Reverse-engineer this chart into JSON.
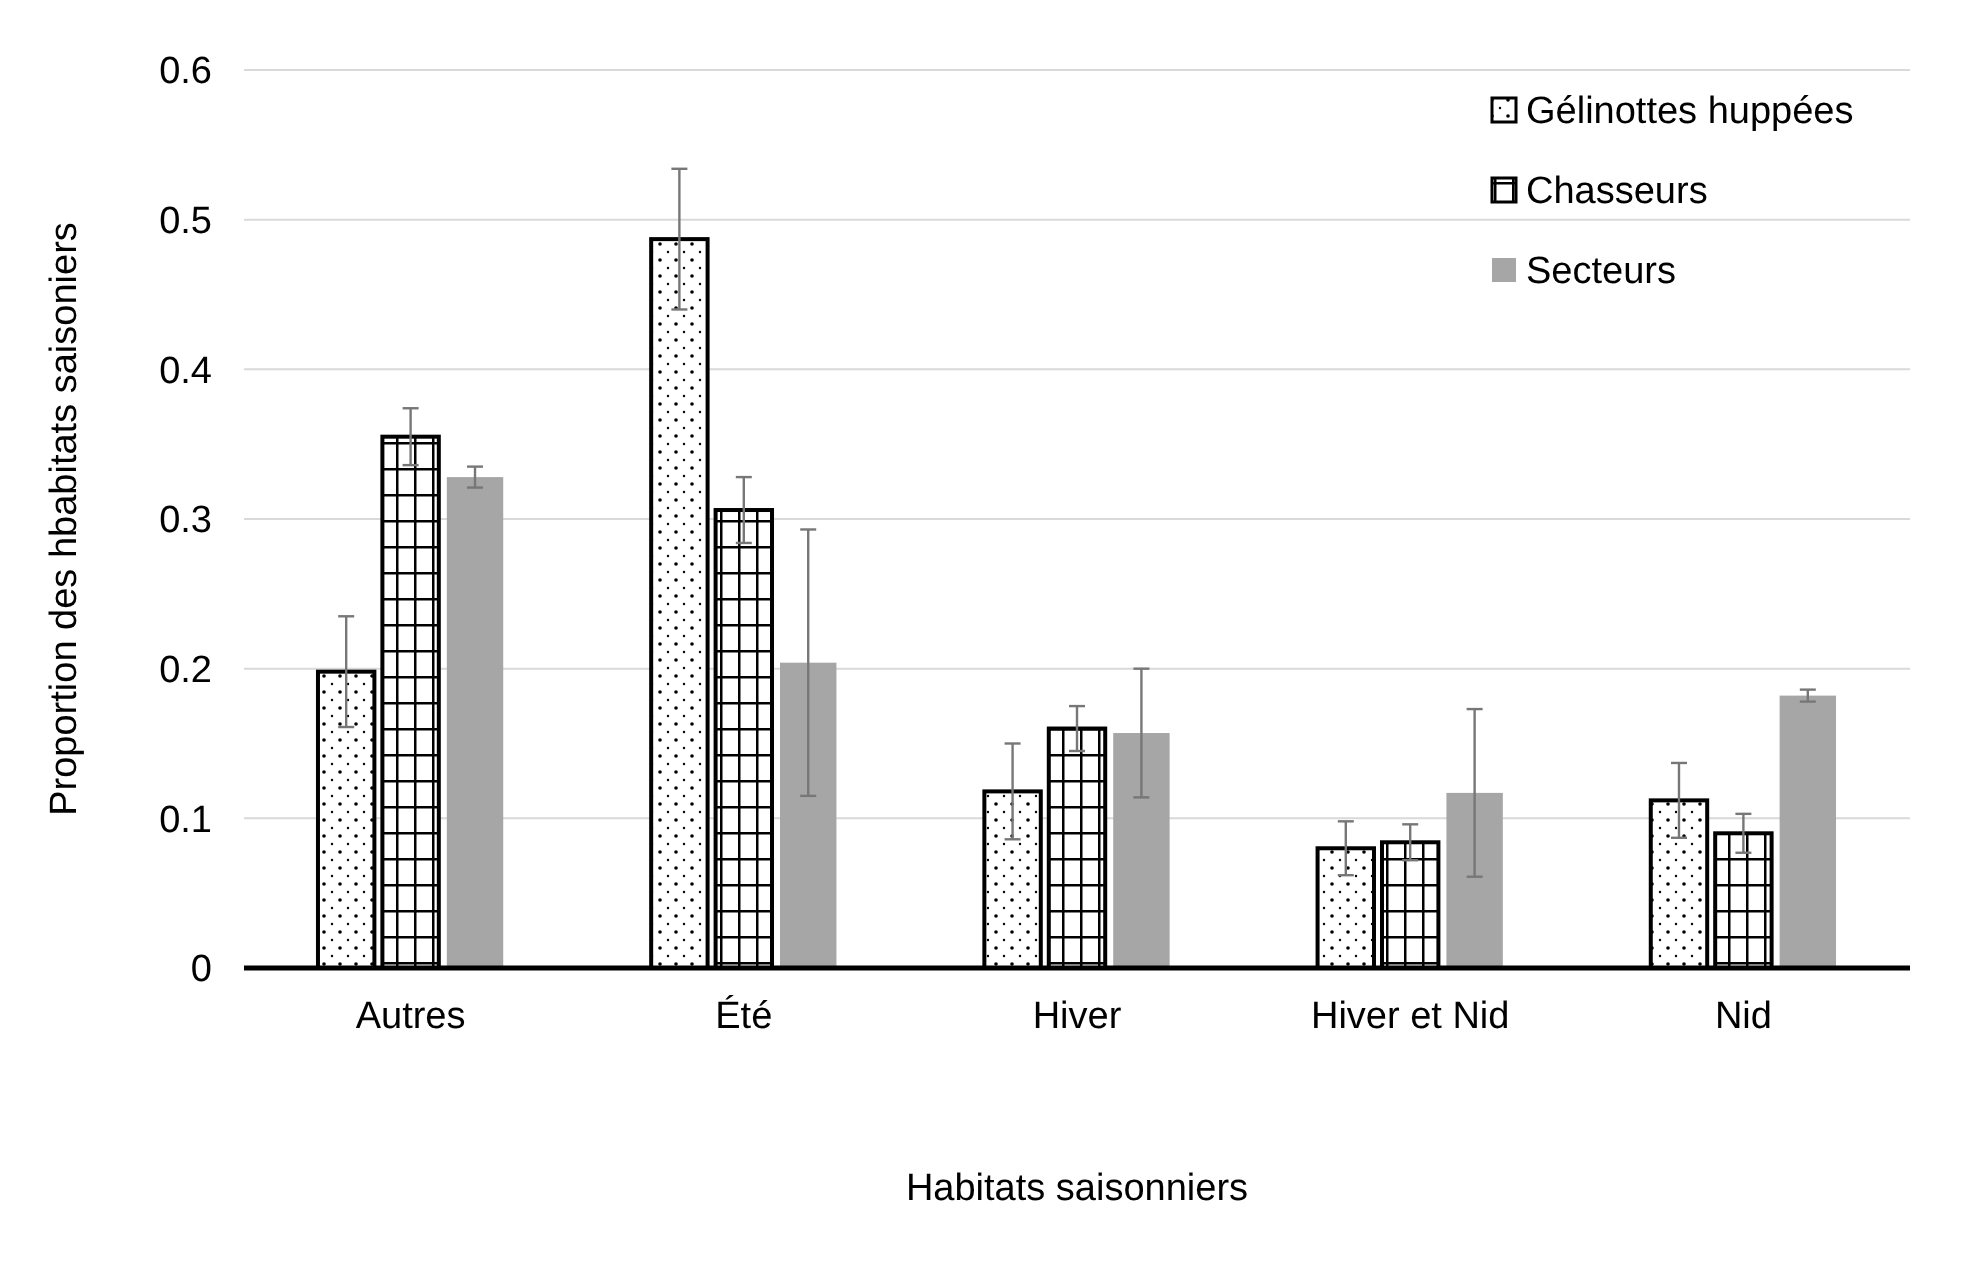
{
  "chart_data": {
    "type": "bar",
    "xlabel": "Habitats saisonniers",
    "ylabel": "Proportion des hbabitats saisoniers",
    "categories": [
      "Autres",
      "Été",
      "Hiver",
      "Hiver et Nid",
      "Nid"
    ],
    "series": [
      {
        "name": "Gélinottes huppées",
        "color": "#000000",
        "values": [
          0.198,
          0.487,
          0.118,
          0.08,
          0.112
        ],
        "errors": [
          0.037,
          0.047,
          0.032,
          0.018,
          0.025
        ]
      },
      {
        "name": "Chasseurs",
        "color": "#000000",
        "values": [
          0.355,
          0.306,
          0.16,
          0.084,
          0.09
        ],
        "errors": [
          0.019,
          0.022,
          0.015,
          0.012,
          0.013
        ]
      },
      {
        "name": "Secteurs",
        "color": "#a6a6a6",
        "values": [
          0.328,
          0.204,
          0.157,
          0.117,
          0.182
        ],
        "errors": [
          0.007,
          0.089,
          0.043,
          0.056,
          0.004
        ]
      }
    ],
    "ylim": [
      0,
      0.6
    ],
    "yticks": [
      0,
      0.1,
      0.2,
      0.3,
      0.4,
      0.5,
      0.6
    ],
    "grid": "y",
    "legend": "top right"
  }
}
